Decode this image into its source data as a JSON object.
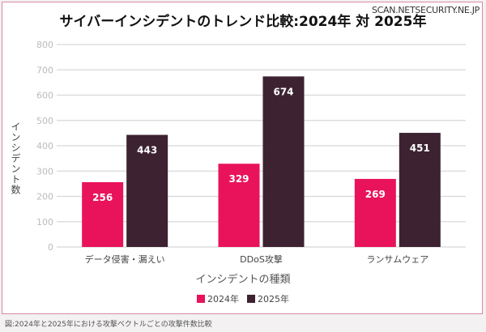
{
  "watermark": "SCAN.NETSECURITY.NE.JP",
  "caption": "図:2024年と2025年における攻撃ベクトルごとの攻撃件数比較",
  "colors": {
    "2024": "#e8135a",
    "2025": "#3d2232"
  },
  "chart_data": {
    "type": "bar",
    "title": "サイバーインシデントのトレンド比較:2024年 対 2025年",
    "xlabel": "インシデントの種類",
    "ylabel": "インシデント数",
    "categories": [
      "データ侵害・漏えい",
      "DDoS攻撃",
      "ランサムウェア"
    ],
    "series": [
      {
        "name": "2024年",
        "values": [
          256,
          329,
          269
        ]
      },
      {
        "name": "2025年",
        "values": [
          443,
          674,
          451
        ]
      }
    ],
    "ylim": [
      0,
      800
    ],
    "yticks": [
      0,
      100,
      200,
      300,
      400,
      500,
      600,
      700,
      800
    ],
    "grid": true,
    "legend": "bottom-center",
    "data_labels": true
  }
}
